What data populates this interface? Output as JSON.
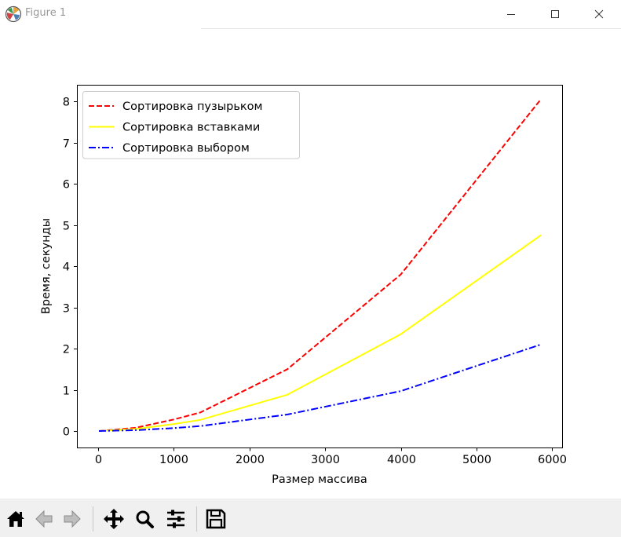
{
  "window": {
    "title": "Figure 1",
    "buttons": [
      "minimize",
      "maximize",
      "close"
    ]
  },
  "toolbar": {
    "buttons": [
      {
        "name": "home-icon"
      },
      {
        "name": "back-arrow-icon"
      },
      {
        "name": "forward-arrow-icon"
      },
      {
        "name": "pan-icon"
      },
      {
        "name": "zoom-icon"
      },
      {
        "name": "configure-subplots-icon"
      },
      {
        "name": "save-icon"
      }
    ]
  },
  "chart_data": {
    "type": "line",
    "title": "",
    "xlabel": "Размер массива",
    "ylabel": "Время, секунды",
    "xlim": [
      -280,
      6130
    ],
    "ylim": [
      -0.4,
      8.4
    ],
    "xticks": [
      0,
      1000,
      2000,
      3000,
      4000,
      5000,
      6000
    ],
    "yticks": [
      0,
      1,
      2,
      3,
      4,
      5,
      6,
      7,
      8
    ],
    "grid": false,
    "legend_position": "upper left",
    "x": [
      10,
      500,
      1000,
      1350,
      2500,
      4000,
      5850
    ],
    "series": [
      {
        "name": "Сортировка пузырьком",
        "color": "#ff0000",
        "linestyle": "dashed",
        "values": [
          0.0,
          0.08,
          0.28,
          0.45,
          1.5,
          3.8,
          8.05
        ]
      },
      {
        "name": "Сортировка вставками",
        "color": "#ffff00",
        "linestyle": "solid",
        "values": [
          0.0,
          0.05,
          0.17,
          0.27,
          0.88,
          2.35,
          4.75
        ]
      },
      {
        "name": "Сортировка выбором",
        "color": "#0000ff",
        "linestyle": "dashdot",
        "values": [
          0.0,
          0.02,
          0.07,
          0.12,
          0.4,
          0.97,
          2.1
        ]
      }
    ]
  }
}
